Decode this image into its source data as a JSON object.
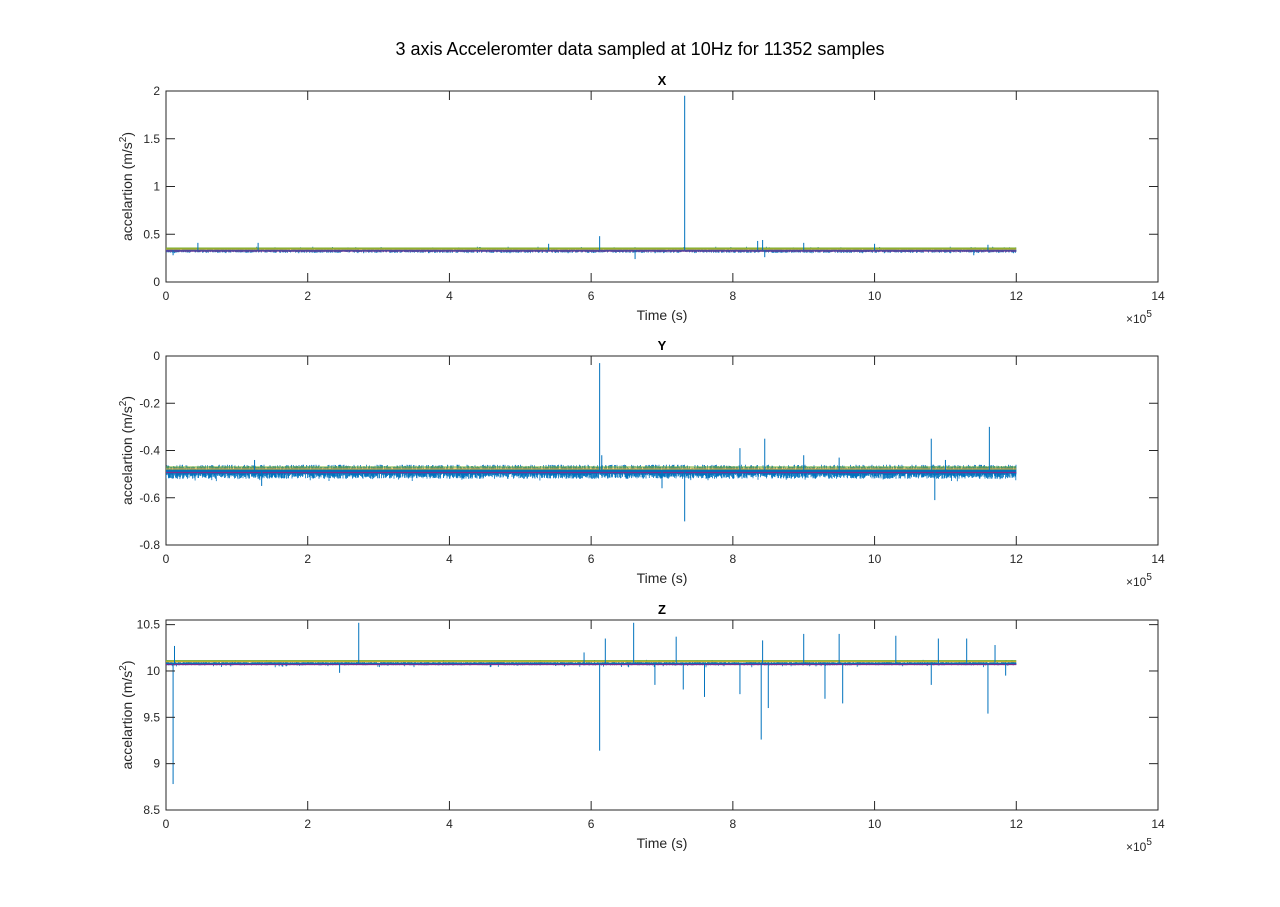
{
  "figure": {
    "title": "3 axis Accelerom­ter data sampled at 10Hz for 11352 samples"
  },
  "colors": {
    "series_main": "#0072BD",
    "series_mean": "#EDB120",
    "series_lower": "#7E2F8E",
    "series_upper": "#77AC30",
    "axis": "#262626"
  },
  "chart_data": [
    {
      "type": "line",
      "title": "X",
      "xlabel": "Time (s)",
      "ylabel_base": "accelartion (m/s",
      "ylabel_sup": "2",
      "ylabel_end": ")",
      "x_exponent_label": "×10",
      "x_exponent": "5",
      "xlim": [
        0,
        14
      ],
      "ylim": [
        0,
        2
      ],
      "xticks": [
        0,
        2,
        4,
        6,
        8,
        10,
        12,
        14
      ],
      "yticks": [
        0,
        0.5,
        1,
        1.5,
        2
      ],
      "ytick_labels": [
        "0",
        "0.5",
        "1",
        "1.5",
        "2"
      ],
      "data_x_range": [
        0,
        12
      ],
      "series": [
        {
          "role": "signal",
          "base": 0.33,
          "band": [
            0.3,
            0.37
          ],
          "noise": 0.012
        },
        {
          "role": "mean",
          "value": 0.345
        },
        {
          "role": "lower",
          "value": 0.325
        },
        {
          "role": "upper",
          "value": 0.355
        }
      ],
      "spikes": [
        {
          "x": 0.45,
          "y": 0.41
        },
        {
          "x": 0.1,
          "y": 0.28
        },
        {
          "x": 1.3,
          "y": 0.41
        },
        {
          "x": 5.4,
          "y": 0.4
        },
        {
          "x": 6.12,
          "y": 0.48
        },
        {
          "x": 6.62,
          "y": 0.24
        },
        {
          "x": 7.32,
          "y": 1.95
        },
        {
          "x": 8.35,
          "y": 0.43
        },
        {
          "x": 8.45,
          "y": 0.26
        },
        {
          "x": 8.42,
          "y": 0.44
        },
        {
          "x": 9.0,
          "y": 0.41
        },
        {
          "x": 10.0,
          "y": 0.4
        },
        {
          "x": 11.6,
          "y": 0.39
        },
        {
          "x": 11.4,
          "y": 0.28
        }
      ]
    },
    {
      "type": "line",
      "title": "Y",
      "xlabel": "Time (s)",
      "ylabel_base": "accelartion (m/s",
      "ylabel_sup": "2",
      "ylabel_end": ")",
      "x_exponent_label": "×10",
      "x_exponent": "5",
      "xlim": [
        0,
        14
      ],
      "ylim": [
        -0.8,
        0
      ],
      "xticks": [
        0,
        2,
        4,
        6,
        8,
        10,
        12,
        14
      ],
      "yticks": [
        -0.8,
        -0.6,
        -0.4,
        -0.2,
        0
      ],
      "ytick_labels": [
        "-0.8",
        "-0.6",
        "-0.4",
        "-0.2",
        "0"
      ],
      "data_x_range": [
        0,
        12
      ],
      "series": [
        {
          "role": "signal",
          "base": -0.49,
          "band": [
            -0.53,
            -0.46
          ],
          "noise": 0.015
        },
        {
          "role": "mean",
          "value": -0.478
        },
        {
          "role": "lower",
          "value": -0.493
        },
        {
          "role": "upper",
          "value": -0.47
        }
      ],
      "spikes": [
        {
          "x": 1.35,
          "y": -0.55
        },
        {
          "x": 1.25,
          "y": -0.44
        },
        {
          "x": 6.12,
          "y": -0.03
        },
        {
          "x": 6.15,
          "y": -0.42
        },
        {
          "x": 7.32,
          "y": -0.7
        },
        {
          "x": 7.0,
          "y": -0.56
        },
        {
          "x": 8.1,
          "y": -0.39
        },
        {
          "x": 8.45,
          "y": -0.35
        },
        {
          "x": 9.0,
          "y": -0.42
        },
        {
          "x": 10.8,
          "y": -0.35
        },
        {
          "x": 10.85,
          "y": -0.61
        },
        {
          "x": 11.62,
          "y": -0.3
        },
        {
          "x": 9.5,
          "y": -0.43
        },
        {
          "x": 11.0,
          "y": -0.44
        }
      ]
    },
    {
      "type": "line",
      "title": "Z",
      "xlabel": "Time (s)",
      "ylabel_base": "accelartion (m/s",
      "ylabel_sup": "2",
      "ylabel_end": ")",
      "x_exponent_label": "×10",
      "x_exponent": "5",
      "xlim": [
        0,
        14
      ],
      "ylim": [
        8.5,
        10.55
      ],
      "xticks": [
        0,
        2,
        4,
        6,
        8,
        10,
        12,
        14
      ],
      "yticks": [
        8.5,
        9,
        9.5,
        10,
        10.5
      ],
      "ytick_labels": [
        "8.5",
        "9",
        "9.5",
        "10",
        "10.5"
      ],
      "data_x_range": [
        0,
        12
      ],
      "series": [
        {
          "role": "signal",
          "base": 10.08,
          "band": [
            10.04,
            10.12
          ],
          "noise": 0.01
        },
        {
          "role": "mean",
          "value": 10.1
        },
        {
          "role": "lower",
          "value": 10.07
        },
        {
          "role": "upper",
          "value": 10.11
        }
      ],
      "spikes": [
        {
          "x": 0.1,
          "y": 8.78
        },
        {
          "x": 0.12,
          "y": 10.27
        },
        {
          "x": 2.45,
          "y": 9.98
        },
        {
          "x": 2.72,
          "y": 10.52
        },
        {
          "x": 6.12,
          "y": 9.14
        },
        {
          "x": 6.2,
          "y": 10.35
        },
        {
          "x": 6.6,
          "y": 10.52
        },
        {
          "x": 6.9,
          "y": 9.85
        },
        {
          "x": 7.2,
          "y": 10.37
        },
        {
          "x": 7.3,
          "y": 9.8
        },
        {
          "x": 7.6,
          "y": 9.72
        },
        {
          "x": 8.1,
          "y": 9.75
        },
        {
          "x": 8.4,
          "y": 9.26
        },
        {
          "x": 8.42,
          "y": 10.33
        },
        {
          "x": 8.5,
          "y": 9.6
        },
        {
          "x": 9.0,
          "y": 10.4
        },
        {
          "x": 9.3,
          "y": 9.7
        },
        {
          "x": 9.5,
          "y": 10.4
        },
        {
          "x": 9.55,
          "y": 9.65
        },
        {
          "x": 10.3,
          "y": 10.38
        },
        {
          "x": 10.8,
          "y": 9.85
        },
        {
          "x": 10.9,
          "y": 10.35
        },
        {
          "x": 11.3,
          "y": 10.35
        },
        {
          "x": 11.6,
          "y": 9.54
        },
        {
          "x": 11.7,
          "y": 10.28
        },
        {
          "x": 11.85,
          "y": 9.95
        },
        {
          "x": 5.9,
          "y": 10.2
        }
      ]
    }
  ]
}
